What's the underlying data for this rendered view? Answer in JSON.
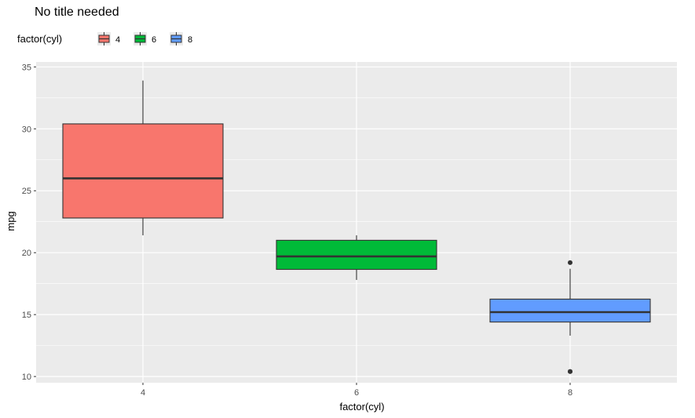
{
  "chart_data": {
    "type": "boxplot",
    "title": "No title needed",
    "xlabel": "factor(cyl)",
    "ylabel": "mpg",
    "legend": {
      "title": "factor(cyl)",
      "position": "top-left",
      "entries": [
        "4",
        "6",
        "8"
      ]
    },
    "categories": [
      "4",
      "6",
      "8"
    ],
    "colors": {
      "4": "#F8766D",
      "6": "#00BA38",
      "8": "#619CFF",
      "panel": "#EBEBEB",
      "grid": "#FFFFFF"
    },
    "ylim": [
      9.5,
      35.4
    ],
    "yticks": [
      10,
      15,
      20,
      25,
      30,
      35
    ],
    "grid": true,
    "boxes": [
      {
        "category": "4",
        "lower_whisker": 21.4,
        "q1": 22.8,
        "median": 26.0,
        "q3": 30.4,
        "upper_whisker": 33.9,
        "outliers": []
      },
      {
        "category": "6",
        "lower_whisker": 17.8,
        "q1": 18.65,
        "median": 19.7,
        "q3": 21.0,
        "upper_whisker": 21.4,
        "outliers": []
      },
      {
        "category": "8",
        "lower_whisker": 13.3,
        "q1": 14.4,
        "median": 15.2,
        "q3": 16.25,
        "upper_whisker": 18.7,
        "outliers": [
          19.2,
          10.4,
          10.4
        ]
      }
    ]
  }
}
